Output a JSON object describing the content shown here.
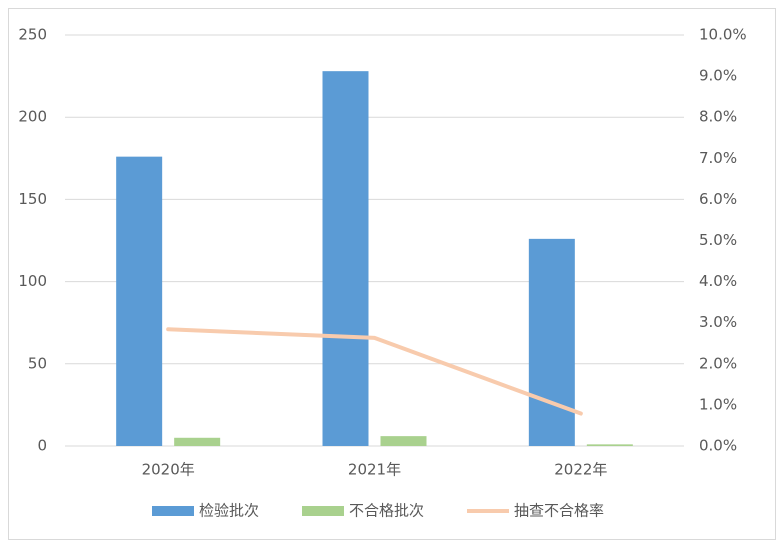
{
  "chart_data": {
    "type": "bar-line",
    "categories": [
      "2020年",
      "2021年",
      "2022年"
    ],
    "series": [
      {
        "name": "检验批次",
        "color": "#5b9bd5",
        "type": "bar",
        "values": [
          176,
          228,
          126
        ]
      },
      {
        "name": "不合格批次",
        "color": "#a9d18e",
        "type": "bar",
        "values": [
          5,
          6,
          1
        ]
      },
      {
        "name": "抽查不合格率",
        "color": "#f8cbad",
        "type": "line",
        "axis": "y2",
        "values": [
          2.84,
          2.63,
          0.79
        ]
      }
    ],
    "ylim": [
      0,
      250
    ],
    "yticks": [
      0,
      50,
      100,
      150,
      200,
      250
    ],
    "y2lim": [
      0,
      10
    ],
    "y2ticks": [
      {
        "value": 0,
        "label": "0.0%"
      },
      {
        "value": 1,
        "label": "1.0%"
      },
      {
        "value": 2,
        "label": "2.0%"
      },
      {
        "value": 3,
        "label": "3.0%"
      },
      {
        "value": 4,
        "label": "4.0%"
      },
      {
        "value": 5,
        "label": "5.0%"
      },
      {
        "value": 6,
        "label": "6.0%"
      },
      {
        "value": 7,
        "label": "7.0%"
      },
      {
        "value": 8,
        "label": "8.0%"
      },
      {
        "value": 9,
        "label": "9.0%"
      },
      {
        "value": 10,
        "label": "10.0%"
      }
    ],
    "grid": true,
    "legend": "bottom"
  }
}
